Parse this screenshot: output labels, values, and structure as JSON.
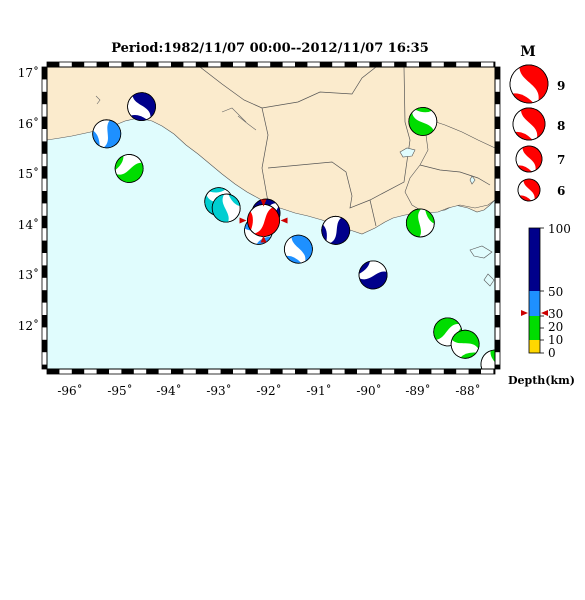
{
  "title": "Period:1982/11/07 00:00--2012/11/07 16:35",
  "map": {
    "land_color": "#fbebcd",
    "sea_color": "#e0fcfd",
    "x_ticks": [
      "-96˚",
      "-95˚",
      "-94˚",
      "-93˚",
      "-92˚",
      "-91˚",
      "-90˚",
      "-89˚",
      "-88˚"
    ],
    "y_ticks": [
      "17˚",
      "16˚",
      "15˚",
      "14˚",
      "13˚",
      "12˚"
    ]
  },
  "magnitude_legend": {
    "title": "M",
    "entries": [
      "9",
      "8",
      "7",
      "6"
    ],
    "color": "#ff0000"
  },
  "depth_legend": {
    "label": "Depth(km)",
    "ticks": [
      "100",
      "50",
      "30",
      "20",
      "10",
      "0"
    ],
    "colors": {
      "deep": "#00008b",
      "intermediate": "#1e90ff",
      "shallow": "#00dd00",
      "very_shallow": "#ffd700"
    }
  },
  "events": [
    {
      "lon": -94.55,
      "lat": 16.3,
      "depth_class": "deep"
    },
    {
      "lon": -95.25,
      "lat": 15.75,
      "depth_class": "intermediate"
    },
    {
      "lon": -94.8,
      "lat": 15.05,
      "depth_class": "shallow"
    },
    {
      "lon": -93.0,
      "lat": 14.38,
      "depth_class": "cyan"
    },
    {
      "lon": -92.85,
      "lat": 14.25,
      "depth_class": "cyan"
    },
    {
      "lon": -92.05,
      "lat": 14.15,
      "depth_class": "deep"
    },
    {
      "lon": -92.2,
      "lat": 13.8,
      "depth_class": "intermediate"
    },
    {
      "lon": -91.4,
      "lat": 13.42,
      "depth_class": "intermediate"
    },
    {
      "lon": -90.65,
      "lat": 13.8,
      "depth_class": "deep"
    },
    {
      "lon": -89.9,
      "lat": 12.9,
      "depth_class": "deep"
    },
    {
      "lon": -88.9,
      "lat": 16.0,
      "depth_class": "shallow"
    },
    {
      "lon": -88.95,
      "lat": 13.95,
      "depth_class": "shallow"
    },
    {
      "lon": -88.4,
      "lat": 11.75,
      "depth_class": "shallow"
    },
    {
      "lon": -88.05,
      "lat": 11.5,
      "depth_class": "shallow"
    },
    {
      "lon": -87.45,
      "lat": 11.1,
      "depth_class": "shallow"
    },
    {
      "lon": -92.1,
      "lat": 14.0,
      "depth_class": "featured"
    }
  ]
}
